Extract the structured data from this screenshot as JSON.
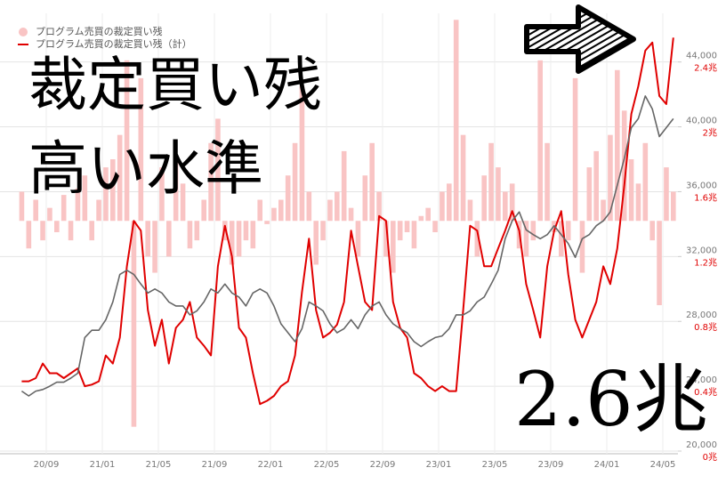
{
  "chart_data": {
    "type": "combo",
    "annotations": [
      "裁定買い残",
      "高い水準",
      "2.6兆"
    ],
    "categories": [
      null,
      null,
      null,
      null,
      "20/09",
      null,
      null,
      null,
      null,
      null,
      null,
      null,
      "21/01",
      null,
      null,
      null,
      null,
      null,
      null,
      null,
      "21/05",
      null,
      null,
      null,
      null,
      null,
      null,
      null,
      "21/09",
      null,
      null,
      null,
      null,
      null,
      null,
      null,
      "22/01",
      null,
      null,
      null,
      null,
      null,
      null,
      null,
      "22/05",
      null,
      null,
      null,
      null,
      null,
      null,
      null,
      "22/09",
      null,
      null,
      null,
      null,
      null,
      null,
      null,
      "23/01",
      null,
      null,
      null,
      null,
      null,
      null,
      null,
      "23/05",
      null,
      null,
      null,
      null,
      null,
      null,
      null,
      "23/09",
      null,
      null,
      null,
      null,
      null,
      null,
      null,
      "24/01",
      null,
      null,
      null,
      null,
      null,
      null,
      null,
      "24/05",
      null
    ],
    "series": [
      {
        "name": "プログラム売買の裁定買い残",
        "type": "bar",
        "axis": "y2",
        "color": "#f9c4c4",
        "values": [
          1.6,
          1.25,
          1.55,
          1.3,
          1.5,
          1.35,
          1.58,
          1.3,
          1.62,
          1.7,
          1.3,
          1.55,
          1.75,
          1.8,
          1.95,
          2.41,
          0.15,
          2.3,
          1.2,
          1.1,
          1.75,
          1.2,
          1.8,
          1.65,
          1.25,
          1.3,
          1.55,
          1.9,
          2.05,
          1.3,
          1.15,
          1.2,
          1.3,
          1.25,
          1.55,
          1.4,
          1.5,
          1.55,
          1.7,
          1.9,
          2.25,
          1.6,
          1.15,
          1.3,
          1.55,
          1.6,
          1.85,
          1.5,
          1.2,
          1.7,
          1.9,
          1.6,
          1.2,
          1.1,
          1.3,
          1.35,
          1.25,
          1.45,
          1.5,
          1.35,
          1.6,
          1.65,
          2.66,
          1.95,
          1.55,
          1.2,
          1.7,
          1.9,
          1.75,
          1.6,
          1.65,
          1.25,
          1.2,
          1.3,
          2.41,
          1.9,
          1.35,
          1.2,
          1.3,
          2.3,
          1.1,
          1.75,
          1.85,
          1.55,
          1.95,
          2.35,
          2.1,
          1.8,
          1.65,
          1.9,
          1.3,
          0.9,
          1.75,
          1.6
        ]
      },
      {
        "name": "プログラム売買の裁定買い残（計）",
        "type": "line",
        "axis": "y2",
        "color": "#e00000",
        "values": [
          0.43,
          0.43,
          0.45,
          0.54,
          0.48,
          0.48,
          0.45,
          0.48,
          0.51,
          0.4,
          0.41,
          0.43,
          0.59,
          0.54,
          0.7,
          1.14,
          1.42,
          1.36,
          0.87,
          0.65,
          0.81,
          0.54,
          0.76,
          0.81,
          0.92,
          0.7,
          0.65,
          0.59,
          1.14,
          1.39,
          1.2,
          0.76,
          0.7,
          0.48,
          0.29,
          0.31,
          0.34,
          0.4,
          0.43,
          0.59,
          0.98,
          1.31,
          0.87,
          0.7,
          0.73,
          0.78,
          0.92,
          1.36,
          1.14,
          0.92,
          0.87,
          1.45,
          1.42,
          0.92,
          0.76,
          0.7,
          0.48,
          0.45,
          0.4,
          0.37,
          0.4,
          0.37,
          0.37,
          0.87,
          1.39,
          1.36,
          1.14,
          1.14,
          1.25,
          1.36,
          1.48,
          1.36,
          1.03,
          0.87,
          0.7,
          1.14,
          1.36,
          1.48,
          1.09,
          0.81,
          0.7,
          0.81,
          0.92,
          1.14,
          1.03,
          1.25,
          1.64,
          2.08,
          2.25,
          2.47,
          2.52,
          2.19,
          2.14,
          2.55
        ]
      },
      {
        "type": "line",
        "axis": "y",
        "color": "#666666",
        "values": [
          23700,
          23400,
          23700,
          23800,
          24000,
          24250,
          24250,
          24500,
          24800,
          27000,
          27450,
          27450,
          28100,
          29200,
          30900,
          31150,
          30900,
          30300,
          29750,
          30000,
          29750,
          29200,
          28950,
          28950,
          28400,
          28650,
          29200,
          30000,
          29750,
          30300,
          29750,
          29500,
          28950,
          29750,
          30000,
          29750,
          28950,
          27850,
          27300,
          26750,
          27550,
          29200,
          28950,
          28650,
          27850,
          27300,
          27550,
          28100,
          27550,
          28400,
          28950,
          29200,
          28400,
          27850,
          27550,
          27300,
          26750,
          26450,
          26750,
          27000,
          27100,
          27550,
          28400,
          28400,
          28650,
          29200,
          29500,
          30300,
          31150,
          33100,
          34200,
          34750,
          33650,
          33350,
          33100,
          33350,
          33900,
          33350,
          32800,
          31950,
          33100,
          33350,
          33900,
          34200,
          34750,
          36400,
          38050,
          39950,
          40500,
          41900,
          41100,
          39400,
          39950,
          40500
        ]
      }
    ],
    "bar_base": 1.42,
    "ylim": [
      20000,
      47000
    ],
    "yticks": [
      {
        "value": 20000,
        "label": "20,000"
      },
      {
        "value": 24000,
        "label": "24,000"
      },
      {
        "value": 28000,
        "label": "28,000"
      },
      {
        "value": 32000,
        "label": "32,000"
      },
      {
        "value": 36000,
        "label": "36,000"
      },
      {
        "value": 40000,
        "label": "40,000"
      },
      {
        "value": 44000,
        "label": "44,000"
      }
    ],
    "y2lim": [
      0,
      2.7
    ],
    "y2ticks": [
      {
        "value": 0,
        "label": "0兆"
      },
      {
        "value": 0.4,
        "label": "0.4兆"
      },
      {
        "value": 0.8,
        "label": "0.8兆"
      },
      {
        "value": 1.2,
        "label": "1.2兆"
      },
      {
        "value": 1.6,
        "label": "1.6兆"
      },
      {
        "value": 2,
        "label": "2兆"
      },
      {
        "value": 2.4,
        "label": "2.4兆"
      }
    ],
    "grid": true
  }
}
